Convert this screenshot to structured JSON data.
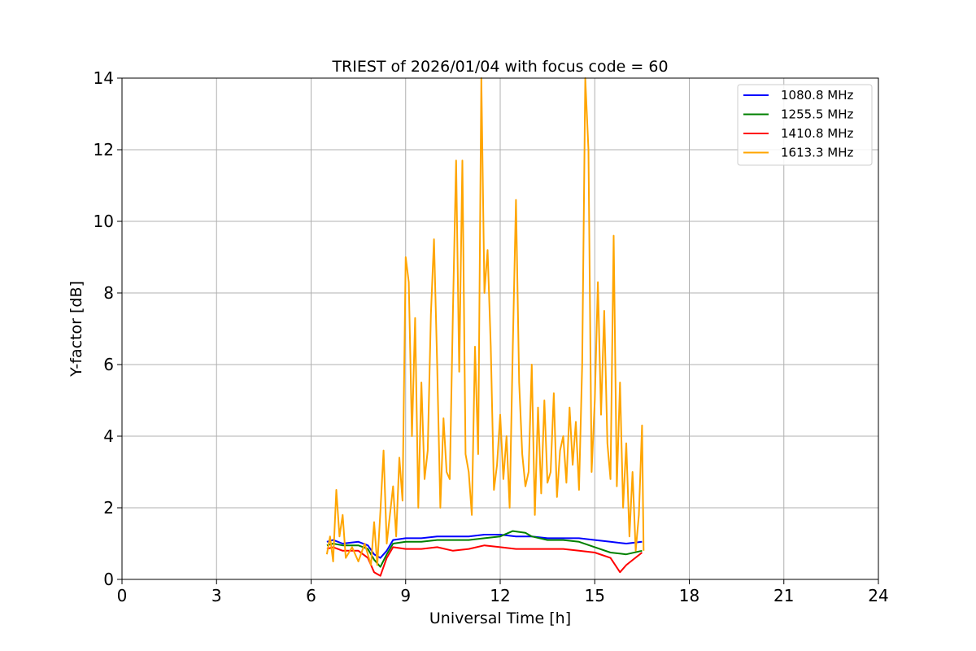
{
  "chart_data": {
    "type": "line",
    "title": "TRIEST of 2026/01/04 with focus code = 60",
    "xlabel": "Universal Time [h]",
    "ylabel": "Y-factor [dB]",
    "xlim": [
      0,
      24
    ],
    "ylim": [
      0,
      14
    ],
    "xticks": [
      "0",
      "3",
      "6",
      "9",
      "12",
      "15",
      "18",
      "21",
      "24"
    ],
    "yticks": [
      "0",
      "2",
      "4",
      "6",
      "8",
      "10",
      "12",
      "14"
    ],
    "grid": true,
    "legend_position": "top-right",
    "series": [
      {
        "name": "1080.8 MHz",
        "color": "#0000ff",
        "points": [
          [
            6.5,
            1.05
          ],
          [
            6.7,
            1.1
          ],
          [
            7.0,
            1.0
          ],
          [
            7.5,
            1.05
          ],
          [
            7.8,
            0.95
          ],
          [
            8.0,
            0.7
          ],
          [
            8.2,
            0.6
          ],
          [
            8.4,
            0.8
          ],
          [
            8.6,
            1.1
          ],
          [
            9.0,
            1.15
          ],
          [
            9.5,
            1.15
          ],
          [
            10.0,
            1.2
          ],
          [
            10.5,
            1.2
          ],
          [
            11.0,
            1.2
          ],
          [
            11.5,
            1.25
          ],
          [
            12.0,
            1.25
          ],
          [
            12.5,
            1.2
          ],
          [
            13.0,
            1.2
          ],
          [
            13.5,
            1.15
          ],
          [
            14.0,
            1.15
          ],
          [
            14.5,
            1.15
          ],
          [
            15.0,
            1.1
          ],
          [
            15.5,
            1.05
          ],
          [
            16.0,
            1.0
          ],
          [
            16.5,
            1.05
          ]
        ]
      },
      {
        "name": "1255.5 MHz",
        "color": "#008000",
        "points": [
          [
            6.5,
            0.95
          ],
          [
            6.7,
            1.0
          ],
          [
            7.0,
            0.95
          ],
          [
            7.5,
            0.95
          ],
          [
            7.8,
            0.85
          ],
          [
            8.0,
            0.55
          ],
          [
            8.2,
            0.35
          ],
          [
            8.4,
            0.7
          ],
          [
            8.6,
            1.0
          ],
          [
            9.0,
            1.05
          ],
          [
            9.5,
            1.05
          ],
          [
            10.0,
            1.1
          ],
          [
            10.5,
            1.1
          ],
          [
            11.0,
            1.1
          ],
          [
            11.5,
            1.15
          ],
          [
            12.0,
            1.2
          ],
          [
            12.4,
            1.35
          ],
          [
            12.8,
            1.3
          ],
          [
            13.0,
            1.2
          ],
          [
            13.5,
            1.1
          ],
          [
            14.0,
            1.1
          ],
          [
            14.5,
            1.05
          ],
          [
            15.0,
            0.9
          ],
          [
            15.5,
            0.75
          ],
          [
            16.0,
            0.7
          ],
          [
            16.5,
            0.8
          ]
        ]
      },
      {
        "name": "1410.8 MHz",
        "color": "#ff0000",
        "points": [
          [
            6.5,
            0.85
          ],
          [
            6.7,
            0.9
          ],
          [
            7.0,
            0.8
          ],
          [
            7.5,
            0.8
          ],
          [
            7.8,
            0.6
          ],
          [
            8.0,
            0.2
          ],
          [
            8.2,
            0.1
          ],
          [
            8.4,
            0.6
          ],
          [
            8.6,
            0.9
          ],
          [
            9.0,
            0.85
          ],
          [
            9.5,
            0.85
          ],
          [
            10.0,
            0.9
          ],
          [
            10.5,
            0.8
          ],
          [
            11.0,
            0.85
          ],
          [
            11.5,
            0.95
          ],
          [
            12.0,
            0.9
          ],
          [
            12.5,
            0.85
          ],
          [
            13.0,
            0.85
          ],
          [
            13.5,
            0.85
          ],
          [
            14.0,
            0.85
          ],
          [
            14.5,
            0.8
          ],
          [
            15.0,
            0.75
          ],
          [
            15.5,
            0.6
          ],
          [
            15.8,
            0.2
          ],
          [
            16.0,
            0.4
          ],
          [
            16.5,
            0.75
          ]
        ]
      },
      {
        "name": "1613.3 MHz",
        "color": "#ffa500",
        "points": [
          [
            6.5,
            0.7
          ],
          [
            6.6,
            1.2
          ],
          [
            6.7,
            0.5
          ],
          [
            6.8,
            2.5
          ],
          [
            6.9,
            1.2
          ],
          [
            7.0,
            1.8
          ],
          [
            7.1,
            0.6
          ],
          [
            7.3,
            0.9
          ],
          [
            7.5,
            0.5
          ],
          [
            7.7,
            1.0
          ],
          [
            7.9,
            0.4
          ],
          [
            8.0,
            1.6
          ],
          [
            8.1,
            0.4
          ],
          [
            8.2,
            1.9
          ],
          [
            8.3,
            3.6
          ],
          [
            8.4,
            1.0
          ],
          [
            8.5,
            1.8
          ],
          [
            8.6,
            2.6
          ],
          [
            8.7,
            1.2
          ],
          [
            8.8,
            3.4
          ],
          [
            8.9,
            2.2
          ],
          [
            9.0,
            9.0
          ],
          [
            9.1,
            8.3
          ],
          [
            9.2,
            4.0
          ],
          [
            9.3,
            7.3
          ],
          [
            9.4,
            2.0
          ],
          [
            9.5,
            5.5
          ],
          [
            9.6,
            2.8
          ],
          [
            9.7,
            3.6
          ],
          [
            9.8,
            7.4
          ],
          [
            9.9,
            9.5
          ],
          [
            10.0,
            6.0
          ],
          [
            10.1,
            2.0
          ],
          [
            10.2,
            4.5
          ],
          [
            10.3,
            3.0
          ],
          [
            10.4,
            2.8
          ],
          [
            10.5,
            7.5
          ],
          [
            10.6,
            11.7
          ],
          [
            10.7,
            5.8
          ],
          [
            10.8,
            11.7
          ],
          [
            10.9,
            3.5
          ],
          [
            11.0,
            3.0
          ],
          [
            11.1,
            1.8
          ],
          [
            11.2,
            6.5
          ],
          [
            11.3,
            3.5
          ],
          [
            11.4,
            14.0
          ],
          [
            11.5,
            8.0
          ],
          [
            11.6,
            9.2
          ],
          [
            11.7,
            6.5
          ],
          [
            11.8,
            2.5
          ],
          [
            11.9,
            3.2
          ],
          [
            12.0,
            4.6
          ],
          [
            12.1,
            2.8
          ],
          [
            12.2,
            4.0
          ],
          [
            12.3,
            2.0
          ],
          [
            12.4,
            6.5
          ],
          [
            12.5,
            10.6
          ],
          [
            12.6,
            5.5
          ],
          [
            12.7,
            3.5
          ],
          [
            12.8,
            2.6
          ],
          [
            12.9,
            3.0
          ],
          [
            13.0,
            6.0
          ],
          [
            13.1,
            1.8
          ],
          [
            13.2,
            4.8
          ],
          [
            13.3,
            2.4
          ],
          [
            13.4,
            5.0
          ],
          [
            13.5,
            2.7
          ],
          [
            13.6,
            3.0
          ],
          [
            13.7,
            5.2
          ],
          [
            13.8,
            2.3
          ],
          [
            13.9,
            3.6
          ],
          [
            14.0,
            4.0
          ],
          [
            14.1,
            2.7
          ],
          [
            14.2,
            4.8
          ],
          [
            14.3,
            3.2
          ],
          [
            14.4,
            4.4
          ],
          [
            14.5,
            2.5
          ],
          [
            14.6,
            6.0
          ],
          [
            14.7,
            14.0
          ],
          [
            14.8,
            12.0
          ],
          [
            14.9,
            3.0
          ],
          [
            15.0,
            5.0
          ],
          [
            15.1,
            8.3
          ],
          [
            15.2,
            4.6
          ],
          [
            15.3,
            7.5
          ],
          [
            15.4,
            3.8
          ],
          [
            15.5,
            2.8
          ],
          [
            15.6,
            9.6
          ],
          [
            15.7,
            2.6
          ],
          [
            15.8,
            5.5
          ],
          [
            15.9,
            2.0
          ],
          [
            16.0,
            3.8
          ],
          [
            16.1,
            1.2
          ],
          [
            16.2,
            3.0
          ],
          [
            16.3,
            0.8
          ],
          [
            16.4,
            1.8
          ],
          [
            16.5,
            4.3
          ],
          [
            16.55,
            0.8
          ]
        ]
      }
    ]
  }
}
